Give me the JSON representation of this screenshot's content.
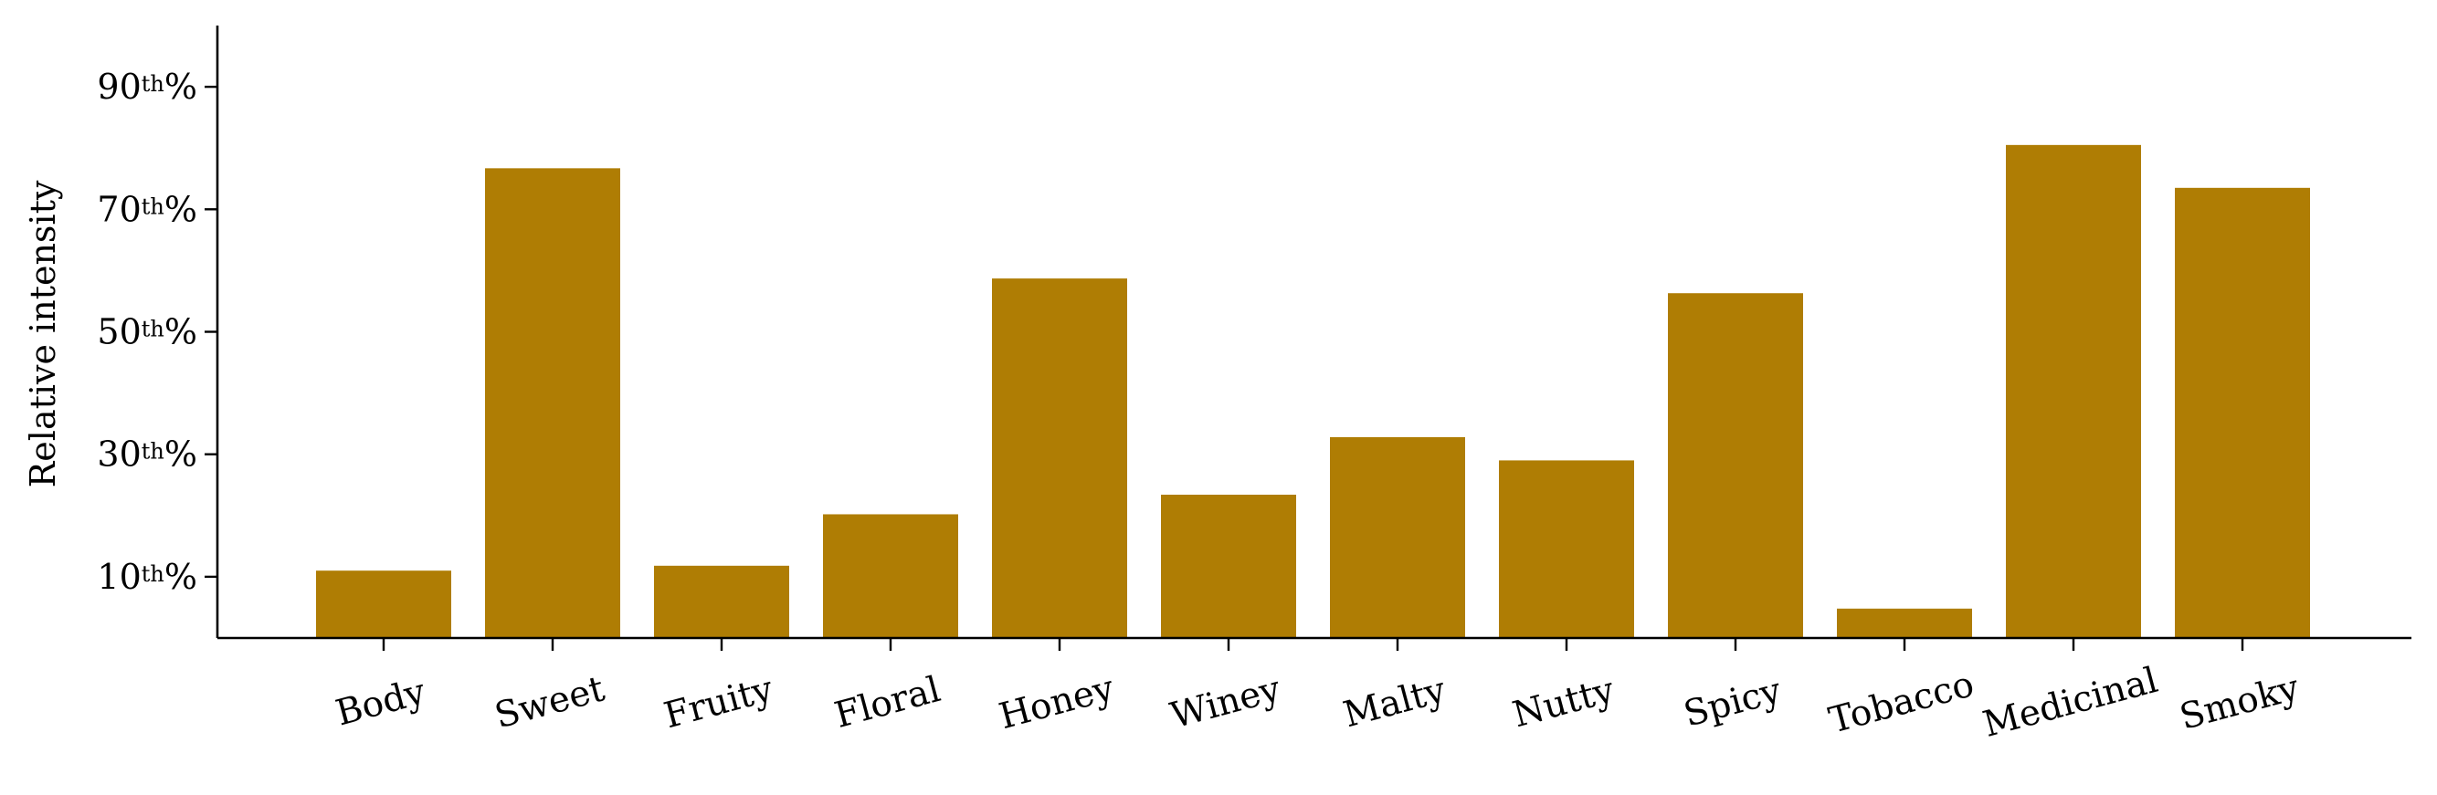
{
  "chart_data": {
    "type": "bar",
    "title": "",
    "xlabel": "",
    "ylabel": "Relative intensity",
    "categories": [
      "Body",
      "Sweet",
      "Fruity",
      "Floral",
      "Honey",
      "Winey",
      "Malty",
      "Nutty",
      "Spicy",
      "Tobacco",
      "Medicinal",
      "Smoky"
    ],
    "values": [
      11,
      76.7,
      11.8,
      20.2,
      58.7,
      23.4,
      32.8,
      29,
      56.3,
      4.8,
      80.5,
      73.5
    ],
    "ylim": [
      0,
      100
    ],
    "yticks": [
      10,
      30,
      50,
      70,
      90
    ],
    "ytick_labels": [
      {
        "num": "10",
        "sup": "th",
        "suffix": "%"
      },
      {
        "num": "30",
        "sup": "th",
        "suffix": "%"
      },
      {
        "num": "50",
        "sup": "th",
        "suffix": "%"
      },
      {
        "num": "70",
        "sup": "th",
        "suffix": "%"
      },
      {
        "num": "90",
        "sup": "th",
        "suffix": "%"
      }
    ],
    "bar_color": "#af7d04",
    "axis_color": "#000000",
    "grid": false,
    "legend": "none"
  }
}
